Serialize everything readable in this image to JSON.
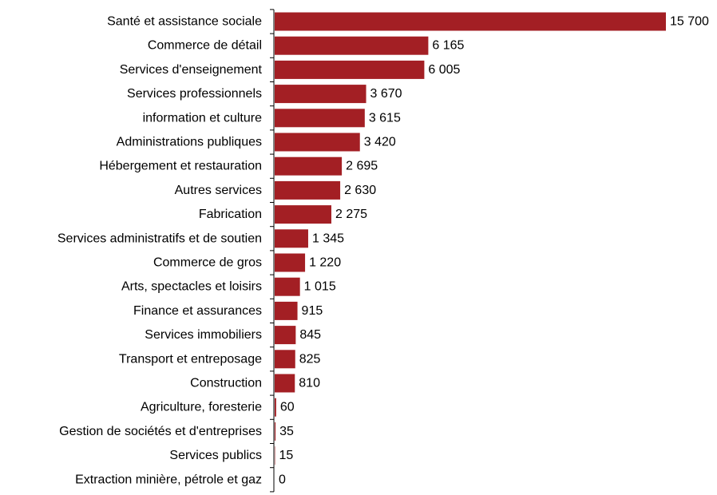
{
  "chart_data": {
    "type": "bar",
    "orientation": "horizontal",
    "title": "",
    "xlabel": "",
    "ylabel": "",
    "bar_color": "#a31f24",
    "categories": [
      "Santé et assistance sociale",
      "Commerce de détail",
      "Services d'enseignement",
      "Services professionnels",
      "information et culture",
      "Administrations publiques",
      "Hébergement et restauration",
      "Autres services",
      "Fabrication",
      "Services administratifs et de soutien",
      "Commerce de gros",
      "Arts, spectacles et loisirs",
      "Finance et assurances",
      "Services immobiliers",
      "Transport et entreposage",
      "Construction",
      "Agriculture, foresterie",
      "Gestion de sociétés et d'entreprises",
      "Services publics",
      "Extraction minière, pétrole et gaz"
    ],
    "values": [
      15700,
      6165,
      6005,
      3670,
      3615,
      3420,
      2695,
      2630,
      2275,
      1345,
      1220,
      1015,
      915,
      845,
      825,
      810,
      60,
      35,
      15,
      0
    ],
    "value_labels": [
      "15 700",
      "6 165",
      "6 005",
      "3 670",
      "3 615",
      "3 420",
      "2 695",
      "2 630",
      "2 275",
      "1 345",
      "1 220",
      "1 015",
      "915",
      "845",
      "825",
      "810",
      "60",
      "35",
      "15",
      "0"
    ],
    "grid": false,
    "legend": "none"
  }
}
